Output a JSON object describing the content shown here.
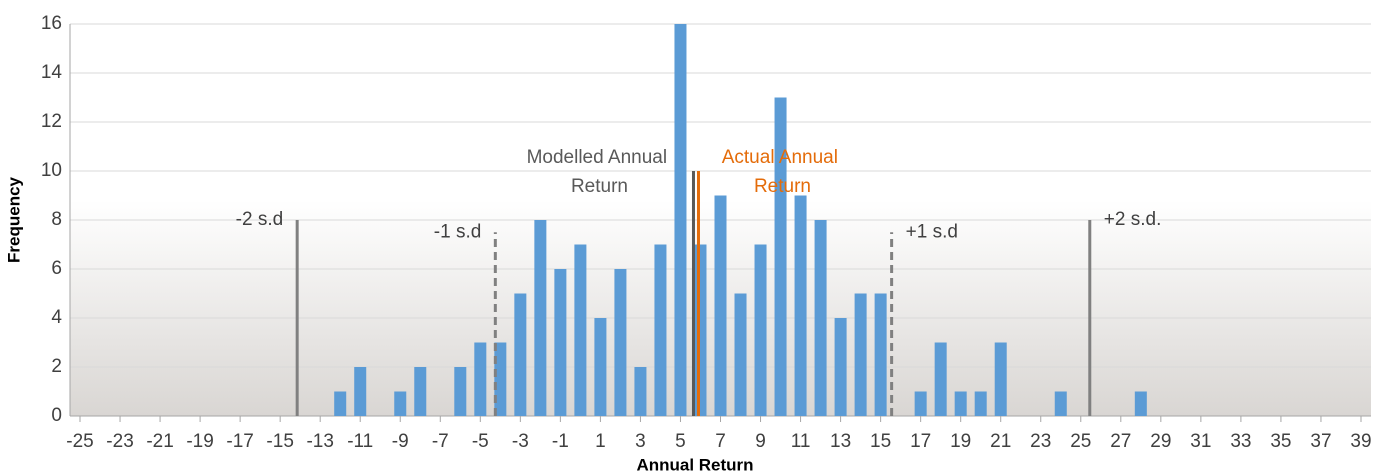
{
  "chart_data": {
    "type": "bar",
    "x_label": "Annual Return",
    "y_label": "Frequency",
    "x": [
      -12,
      -11,
      -9,
      -8,
      -6,
      -5,
      -4,
      -3,
      -2,
      -1,
      0,
      1,
      2,
      3,
      4,
      5,
      6,
      7,
      8,
      9,
      10,
      11,
      12,
      13,
      14,
      15,
      17,
      18,
      19,
      20,
      21,
      24,
      28
    ],
    "values": [
      1,
      2,
      1,
      2,
      2,
      3,
      3,
      5,
      8,
      6,
      7,
      4,
      6,
      2,
      7,
      16,
      7,
      9,
      5,
      7,
      13,
      9,
      8,
      4,
      5,
      5,
      1,
      3,
      1,
      1,
      3,
      1,
      1
    ],
    "color": "#5b9bd5",
    "xlim": [
      -25.5,
      39.5
    ],
    "xticks": [
      -25,
      -23,
      -21,
      -19,
      -17,
      -15,
      -13,
      -11,
      -9,
      -7,
      -5,
      -3,
      -1,
      1,
      3,
      5,
      7,
      9,
      11,
      13,
      15,
      17,
      19,
      21,
      23,
      25,
      27,
      29,
      31,
      33,
      35,
      37,
      39
    ],
    "ylim": [
      0,
      16
    ],
    "yticks": [
      0,
      2,
      4,
      6,
      8,
      10,
      12,
      14,
      16
    ],
    "grid": true,
    "ref_lines": [
      {
        "label": "-2 s.d",
        "x": -14.15,
        "height": 8,
        "style": "solid",
        "color": "#808080"
      },
      {
        "label": "-1 s.d",
        "x": -4.25,
        "height": 7.5,
        "style": "dashed",
        "color": "#808080"
      },
      {
        "label": "Modelled Annual Return",
        "x": 5.65,
        "height": 10,
        "style": "solid",
        "color": "#595959"
      },
      {
        "label": "Actual Annual Return",
        "x": 5.9,
        "height": 10,
        "style": "solid",
        "color": "#e46c0a"
      },
      {
        "label": "+1 s.d",
        "x": 15.55,
        "height": 7.5,
        "style": "dashed",
        "color": "#808080"
      },
      {
        "label": "+2 s.d.",
        "x": 25.45,
        "height": 8,
        "style": "solid",
        "color": "#808080"
      }
    ]
  }
}
